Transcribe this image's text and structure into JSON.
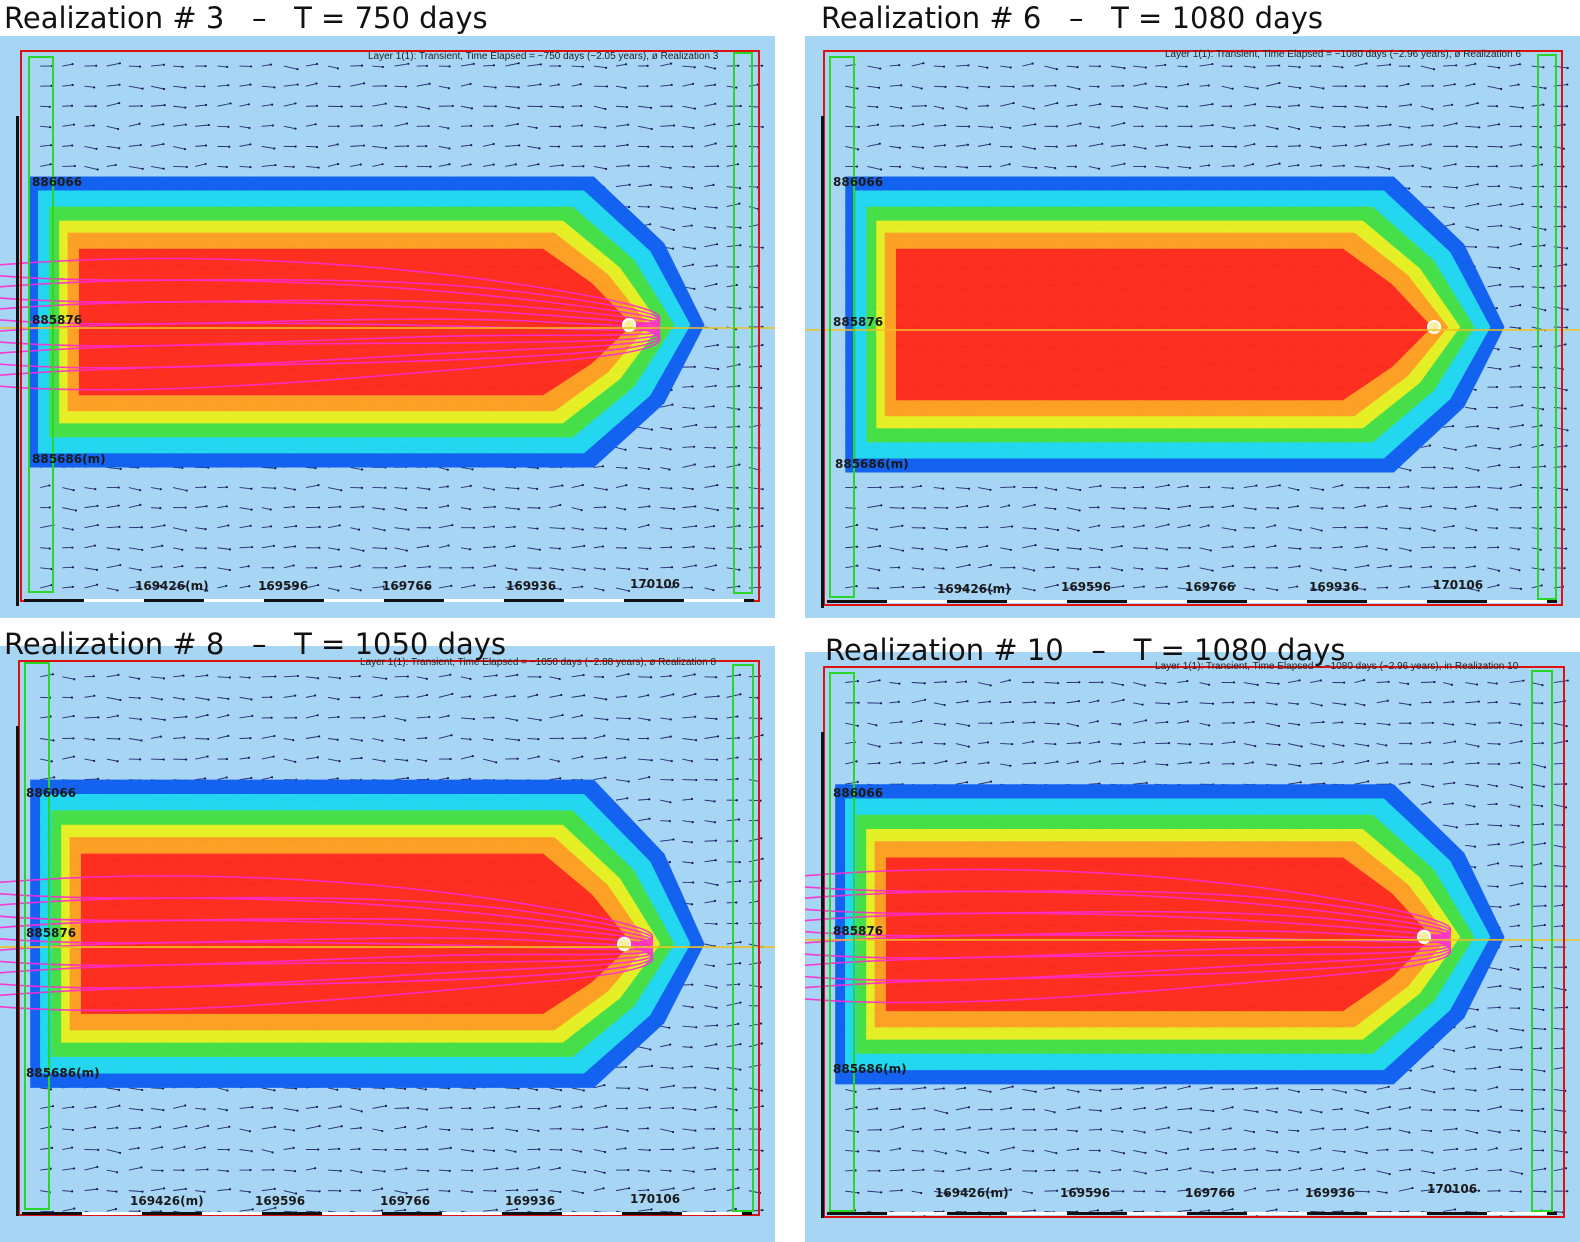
{
  "panels": [
    {
      "title": "Realization # 3   –   T = 750 days",
      "subtitle": "Layer 1(1): Transient, Time Elapsed = ~750 days (~2.05 years), ø Realization 3",
      "y_labels": [
        "886066",
        "885876",
        "885686(m)"
      ],
      "x_labels": [
        "169426(m)",
        "169596",
        "169766",
        "169936",
        "170106"
      ]
    },
    {
      "title": "Realization # 6   –   T = 1080 days",
      "subtitle": "Layer 1(1): Transient, Time Elapsed = ~1080 days (~2.96 years), ø Realization 6",
      "y_labels": [
        "886066",
        "885876",
        "885686(m)"
      ],
      "x_labels": [
        "169426(m)",
        "169596",
        "169766",
        "169936",
        "170106"
      ]
    },
    {
      "title": "Realization # 8   –   T = 1050 days",
      "subtitle": "Layer 1(1): Transient, Time Elapsed = ~1050 days (~2.88 years), ø Realization 8",
      "y_labels": [
        "886066",
        "885876",
        "885686(m)"
      ],
      "x_labels": [
        "169426(m)",
        "169596",
        "169766",
        "169936",
        "170106"
      ]
    },
    {
      "title": "Realization # 10   –   T = 1080 days",
      "subtitle": "Layer 1(1): Transient, Time Elapsed = ~1080 days (~2.96 years), in Realization 10",
      "y_labels": [
        "886066",
        "885876",
        "885686(m)"
      ],
      "x_labels": [
        "169426(m)",
        "169596",
        "169766",
        "169936",
        "170106"
      ]
    }
  ],
  "colors": {
    "background": "#a7d6f5",
    "plume_core": "#ff2a1a",
    "plume_orange": "#ffa020",
    "plume_yellow": "#e8f020",
    "plume_green": "#44e044",
    "plume_cyan": "#20d8f0",
    "plume_blue": "#1060f0",
    "pathlines": "#ff2ad0",
    "section_line": "#f0c020",
    "grid_frame": "#dd1111",
    "boundary": "#29d629"
  }
}
